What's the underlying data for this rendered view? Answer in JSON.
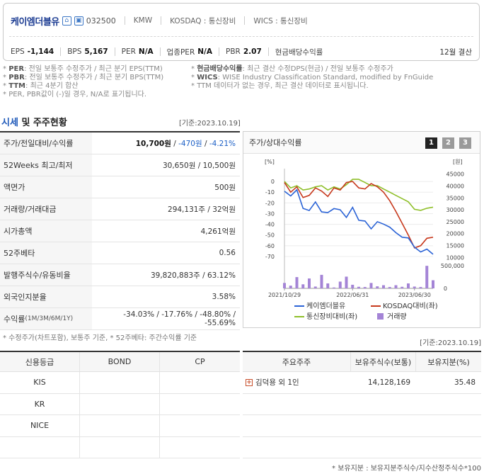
{
  "header": {
    "company_name": "케이엠더블유",
    "code": "032500",
    "meta": [
      "KMW",
      "KOSDAQ : 통신장비",
      "WICS : 통신장비"
    ],
    "metrics": [
      {
        "label": "EPS",
        "value": "-1,144"
      },
      {
        "label": "BPS",
        "value": "5,167"
      },
      {
        "label": "PER",
        "value": "N/A"
      },
      {
        "label": "업종PER",
        "value": "N/A"
      },
      {
        "label": "PBR",
        "value": "2.07"
      }
    ],
    "dividend_label": "현금배당수익률",
    "settlement": "12월 결산"
  },
  "notes": {
    "left": [
      {
        "key": "PER",
        "text": ": 전일 보통주 수정주가 / 최근 분기 EPS(TTM)"
      },
      {
        "key": "PBR",
        "text": ": 전일 보통주 수정주가 / 최근 분기 BPS(TTM)"
      },
      {
        "key": "TTM",
        "text": ": 최근 4분기 합산"
      },
      {
        "key": "",
        "text": "PER, PBR값이 (-)일 경우, N/A로 표기됩니다."
      }
    ],
    "right": [
      {
        "key": "현금배당수익률",
        "text": ": 최근 결산 수정DPS(현금) / 전일 보통주 수정주가"
      },
      {
        "key": "WICS",
        "text": ": WISE Industry Classification Standard, modified by FnGuide"
      },
      {
        "key": "",
        "text": "TTM 데이터가 없는 경우, 최근 결산 데이터로 표시됩니다."
      }
    ]
  },
  "section": {
    "title_accent": "시세",
    "title_rest": " 및 주주현황",
    "base_date": "[기준:2023.10.19]"
  },
  "market_table": [
    {
      "label": "주가/전일대비/수익률",
      "value_main": "10,700원",
      "value_chg": "-470원",
      "value_rate": "-4.21%"
    },
    {
      "label": "52Weeks 최고/최저",
      "value": "30,650원 / 10,500원"
    },
    {
      "label": "액면가",
      "value": "500원"
    },
    {
      "label": "거래량/거래대금",
      "value": "294,131주 / 32억원"
    },
    {
      "label": "시가총액",
      "value": "4,261억원"
    },
    {
      "label": "52주베타",
      "value": "0.56"
    },
    {
      "label": "발행주식수/유동비율",
      "value": "39,820,883주 / 63.12%"
    },
    {
      "label": "외국인지분율",
      "value": "3.58%"
    },
    {
      "label": "수익률",
      "label_small": "(1M/3M/6M/1Y)",
      "value": "-34.03% / -17.76% / -48.80% / -55.69%"
    }
  ],
  "market_note": "* 수정주가(차트포함), 보통주 기준, * 52주베타: 주간수익률 기준",
  "chart_panel": {
    "title": "주가/상대수익률",
    "pages": [
      "1",
      "2",
      "3"
    ]
  },
  "chart_data": {
    "type": "line",
    "left_axis_unit": "[%]",
    "right_axis_unit": "[원]",
    "left_ticks": [
      "0",
      "-10",
      "-20",
      "-30",
      "-40",
      "-50",
      "-60",
      "-70"
    ],
    "right_ticks": [
      "45000",
      "40000",
      "35000",
      "30000",
      "25000",
      "20000",
      "15000",
      "10000"
    ],
    "volume_ticks": [
      "500,000",
      "0"
    ],
    "x_ticks": [
      "2021/10/29",
      "2022/06/31",
      "2023/06/30"
    ],
    "x_index": [
      0,
      1,
      2,
      3,
      4,
      5,
      6,
      7,
      8,
      9,
      10,
      11,
      12,
      13,
      14,
      15,
      16,
      17,
      18,
      19,
      20,
      21,
      22,
      23,
      24
    ],
    "ylim_left": [
      -72,
      8
    ],
    "ylim_right": [
      9500,
      45500
    ],
    "series": [
      {
        "name": "케이엠더블유",
        "axis": "right",
        "color": "#2b63d6",
        "values": [
          37800,
          35800,
          38400,
          30600,
          29700,
          33300,
          29100,
          28800,
          30500,
          30000,
          26800,
          31000,
          25600,
          25300,
          22000,
          25000,
          24000,
          22700,
          20400,
          18500,
          18200,
          14300,
          12300,
          13500,
          11300
        ]
      },
      {
        "name": "KOSDAQ대비(좌)",
        "axis": "left",
        "color": "#c7391d",
        "values": [
          -1,
          -10,
          -5,
          -15,
          -13,
          -6,
          -9,
          -14,
          -6,
          -8,
          -1,
          0,
          -6,
          -7,
          -2,
          -5,
          -10,
          -18,
          -28,
          -39,
          -50,
          -62,
          -60,
          -53,
          -52
        ]
      },
      {
        "name": "통신장비대비(좌)",
        "axis": "left",
        "color": "#8fbf2a",
        "values": [
          0,
          -6,
          -4,
          -8,
          -7,
          -5,
          -4,
          -8,
          -5,
          -7,
          -3,
          2,
          2,
          -1,
          -4,
          -4,
          -7,
          -10,
          -13,
          -16,
          -19,
          -26,
          -27,
          -25,
          -24
        ]
      },
      {
        "name": "거래량",
        "axis": "volume",
        "color": "#a484d6",
        "values": [
          120000,
          60000,
          250000,
          90000,
          220000,
          40000,
          300000,
          110000,
          20000,
          150000,
          260000,
          80000,
          35000,
          30000,
          120000,
          45000,
          70000,
          30000,
          70000,
          35000,
          110000,
          40000,
          30000,
          500000,
          180000
        ]
      }
    ]
  },
  "credit_table": {
    "headers": [
      "신용등급",
      "BOND",
      "CP"
    ],
    "rows": [
      [
        "KIS",
        "",
        ""
      ],
      [
        "KR",
        "",
        ""
      ],
      [
        "NICE",
        "",
        ""
      ],
      [
        "",
        "",
        ""
      ]
    ]
  },
  "holders_table": {
    "base_date": "[기준:2023.10.19]",
    "headers": [
      "주요주주",
      "보유주식수(보통)",
      "보유지분(%)"
    ],
    "rows": [
      {
        "name": "김덕용 외 1인",
        "shares": "14,128,169",
        "pct": "35.48"
      },
      {
        "name": "",
        "shares": "",
        "pct": ""
      },
      {
        "name": "",
        "shares": "",
        "pct": ""
      },
      {
        "name": "",
        "shares": "",
        "pct": ""
      }
    ],
    "note": "* 보유지분 : 보유지분주식수/지수산정주식수*100"
  }
}
